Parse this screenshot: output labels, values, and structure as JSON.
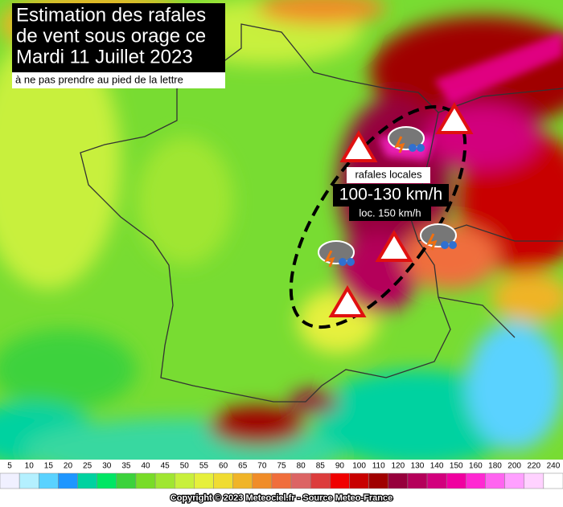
{
  "title": {
    "lines": [
      "Estimation des rafales",
      "de vent sous orage ce",
      "Mardi 11 Juillet 2023"
    ],
    "subtitle": "à ne pas prendre au pied de la lettre"
  },
  "annotation": {
    "label": "rafales locales",
    "range": "100-130 km/h",
    "local": "loc. 150 km/h"
  },
  "legend": {
    "values": [
      5,
      10,
      15,
      20,
      25,
      30,
      35,
      40,
      45,
      50,
      55,
      60,
      65,
      70,
      75,
      80,
      85,
      90,
      100,
      110,
      120,
      130,
      140,
      150,
      160,
      180,
      200,
      220,
      240
    ],
    "colors": [
      "#f0f0ff",
      "#b4f0ff",
      "#5ad2ff",
      "#1e96ff",
      "#00d2a0",
      "#00e664",
      "#3cd23c",
      "#78dc28",
      "#a0e632",
      "#c8f03c",
      "#e6f03c",
      "#f0dc32",
      "#f0b428",
      "#f08c28",
      "#f06e3c",
      "#dc6464",
      "#dc3c3c",
      "#f00000",
      "#c80000",
      "#a00000",
      "#96003c",
      "#b4005a",
      "#d2007d",
      "#f000a0",
      "#ff28d2",
      "#ff64f0",
      "#ffa0ff",
      "#ffd2ff",
      "#ffffff"
    ]
  },
  "footer": "Copyright © 2023 Meteociel.fr - Source Meteo-France"
}
